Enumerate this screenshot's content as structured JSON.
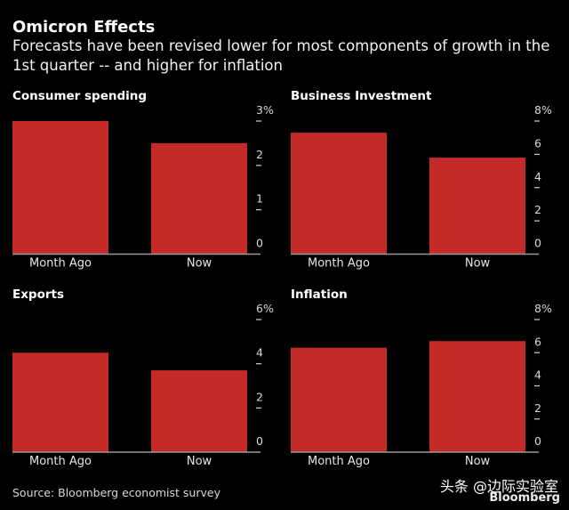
{
  "header": {
    "title": "Omicron Effects",
    "subtitle": "Forecasts have been revised lower for most components of growth in the 1st quarter -- and higher for inflation"
  },
  "footer": {
    "source": "Source: Bloomberg economist survey",
    "watermark": "头条 @边际实验室",
    "brand": "Bloomberg"
  },
  "colors": {
    "bar": "#C42B28",
    "axis": "#9a9a9a",
    "background": "#000000"
  },
  "chart_data": [
    {
      "type": "bar",
      "title": "Consumer spending",
      "categories": [
        "Month Ago",
        "Now"
      ],
      "values": [
        3.0,
        2.5
      ],
      "ylim": [
        0,
        3
      ],
      "yticks": [
        0,
        1,
        2,
        3
      ],
      "ytick_labels": [
        "0",
        "1",
        "2",
        "3%"
      ],
      "xlabel": "",
      "ylabel": "",
      "grid": false,
      "legend": "none"
    },
    {
      "type": "bar",
      "title": "Business Investment",
      "categories": [
        "Month Ago",
        "Now"
      ],
      "values": [
        7.3,
        5.8
      ],
      "ylim": [
        0,
        8
      ],
      "yticks": [
        0,
        2,
        4,
        6,
        8
      ],
      "ytick_labels": [
        "0",
        "2",
        "4",
        "6",
        "8%"
      ],
      "xlabel": "",
      "ylabel": "",
      "grid": false,
      "legend": "none"
    },
    {
      "type": "bar",
      "title": "Exports",
      "categories": [
        "Month Ago",
        "Now"
      ],
      "values": [
        4.5,
        3.7
      ],
      "ylim": [
        0,
        6
      ],
      "yticks": [
        0,
        2,
        4,
        6
      ],
      "ytick_labels": [
        "0",
        "2",
        "4",
        "6%"
      ],
      "xlabel": "",
      "ylabel": "",
      "grid": false,
      "legend": "none"
    },
    {
      "type": "bar",
      "title": "Inflation",
      "categories": [
        "Month Ago",
        "Now"
      ],
      "values": [
        6.3,
        6.7
      ],
      "ylim": [
        0,
        8
      ],
      "yticks": [
        0,
        2,
        4,
        6,
        8
      ],
      "ytick_labels": [
        "0",
        "2",
        "4",
        "6",
        "8%"
      ],
      "xlabel": "",
      "ylabel": "",
      "grid": false,
      "legend": "none"
    }
  ]
}
